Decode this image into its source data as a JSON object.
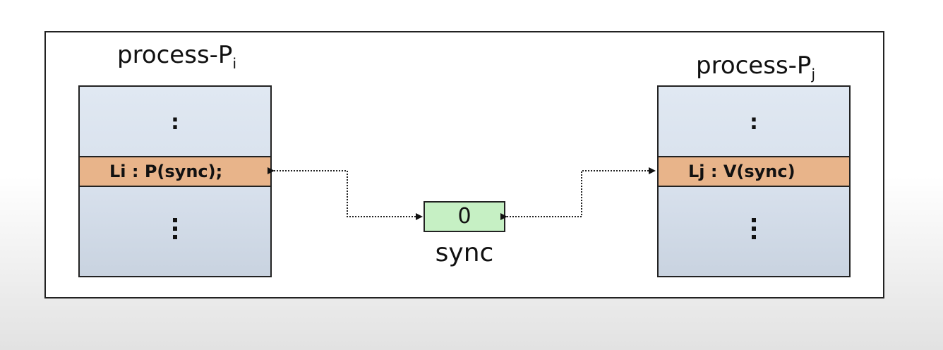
{
  "process_i": {
    "title": "process-P",
    "subscript": "i",
    "top_ellipsis": ":",
    "statement": "Li : P(sync);"
  },
  "process_j": {
    "title": "process-P",
    "subscript": "j",
    "top_ellipsis": ":",
    "statement": "Lj : V(sync)"
  },
  "semaphore": {
    "value": "0",
    "label": "sync"
  },
  "colors": {
    "process_box": "#d7e0ec",
    "statement_row": "#e8b48a",
    "semaphore_box": "#c6f0c4",
    "border": "#222222"
  }
}
